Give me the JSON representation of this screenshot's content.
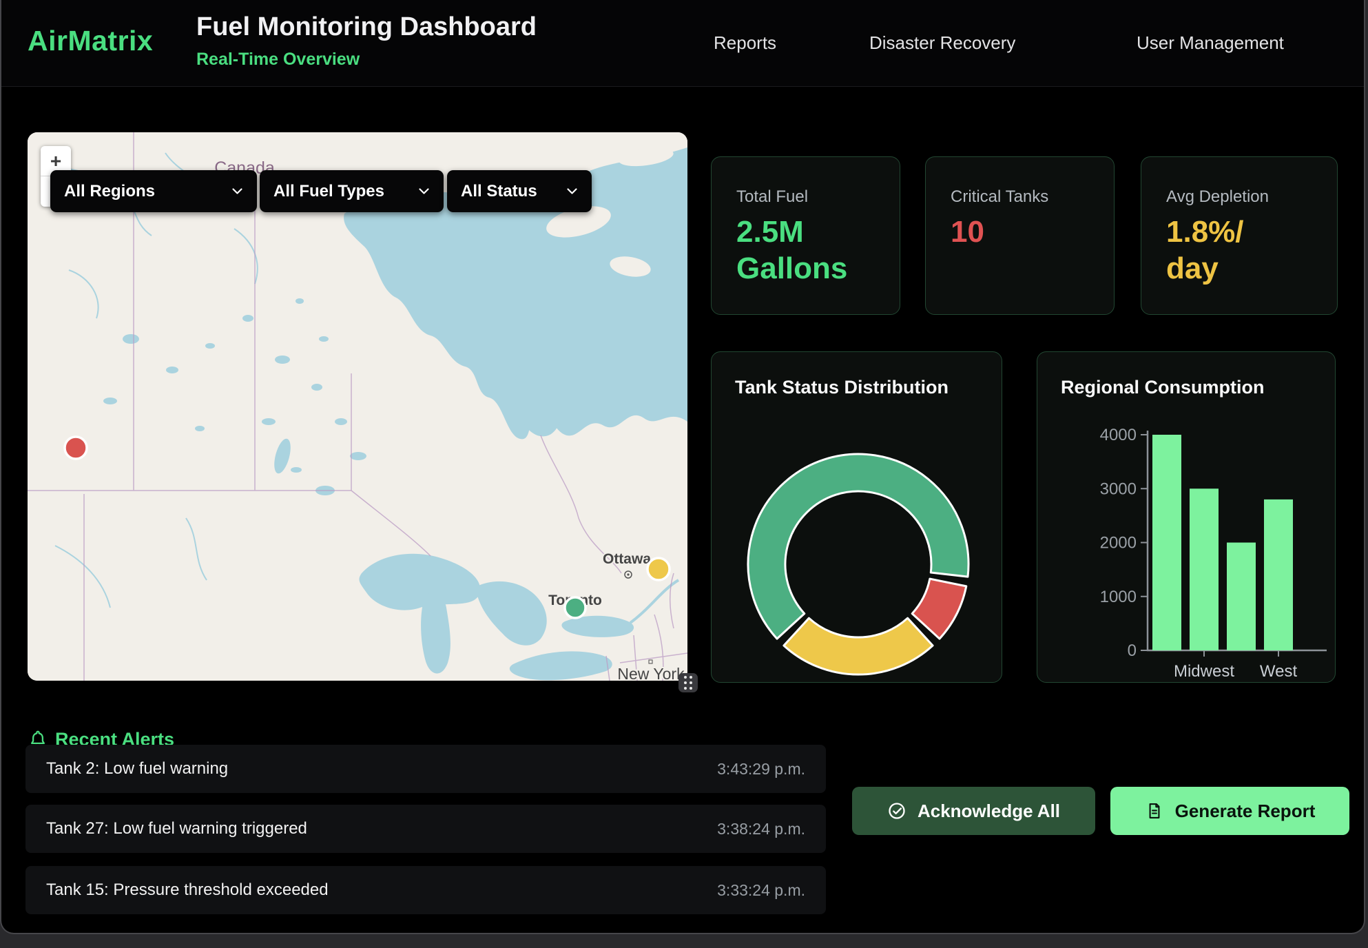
{
  "theme": {
    "accent_green": "#4ade80",
    "critical_red": "#e05252",
    "warning_yellow": "#eec343",
    "ack_button_bg": "#2d5438",
    "report_button_bg": "#7df29e"
  },
  "header": {
    "brand": "AirMatrix",
    "title": "Fuel Monitoring Dashboard",
    "subtitle": "Real-Time Overview",
    "nav": [
      "Reports",
      "Disaster Recovery",
      "User Management"
    ]
  },
  "map": {
    "zoom_in": "+",
    "zoom_out": "−",
    "filters": [
      "All Regions",
      "All Fuel Types",
      "All Status"
    ],
    "labels": {
      "country": "Canada",
      "cities": [
        "Ottawa",
        "Toronto",
        "New York"
      ]
    },
    "markers": [
      {
        "status": "critical",
        "color": "#d9534f"
      },
      {
        "status": "warning",
        "color": "#eec84a"
      },
      {
        "status": "normal",
        "color": "#4caf82"
      }
    ]
  },
  "stats": [
    {
      "label": "Total Fuel",
      "value": "2.5M\nGallons",
      "color": "#4ade80"
    },
    {
      "label": "Critical Tanks",
      "value": "10",
      "color": "#e05252"
    },
    {
      "label": "Avg Depletion",
      "value": "1.8%/\nday",
      "color": "#eec343"
    }
  ],
  "chart_data": [
    {
      "type": "pie",
      "variant": "doughnut",
      "title": "Tank Status Distribution",
      "rotation_deg": 225,
      "cutout_ratio": 0.66,
      "border_color": "#ffffff",
      "legend": "none",
      "data_labels": "none",
      "segments": [
        {
          "name": "green",
          "value": 65,
          "color": "#4caf82"
        },
        {
          "name": "red",
          "value": 10,
          "color": "#d9534f"
        },
        {
          "name": "yellow",
          "value": 25,
          "color": "#eec84a"
        }
      ]
    },
    {
      "type": "bar",
      "title": "Regional Consumption",
      "values": [
        4000,
        3000,
        2000,
        2800
      ],
      "x_tick_labels": [
        {
          "bar_index": 1,
          "label": "Midwest"
        },
        {
          "bar_index": 3,
          "label": "West"
        }
      ],
      "ylim": [
        0,
        4000
      ],
      "yticks": [
        0,
        1000,
        2000,
        3000,
        4000
      ],
      "bar_color": "#7df29e",
      "grid": false,
      "legend": "none"
    }
  ],
  "alerts": {
    "title": "Recent Alerts",
    "items": [
      {
        "message": "Tank 2: Low fuel warning",
        "time": "3:43:29 p.m."
      },
      {
        "message": "Tank 27: Low fuel warning triggered",
        "time": "3:38:24 p.m."
      },
      {
        "message": "Tank 15: Pressure threshold exceeded",
        "time": "3:33:24 p.m."
      }
    ],
    "acknowledge_all": "Acknowledge All",
    "generate_report": "Generate Report"
  }
}
